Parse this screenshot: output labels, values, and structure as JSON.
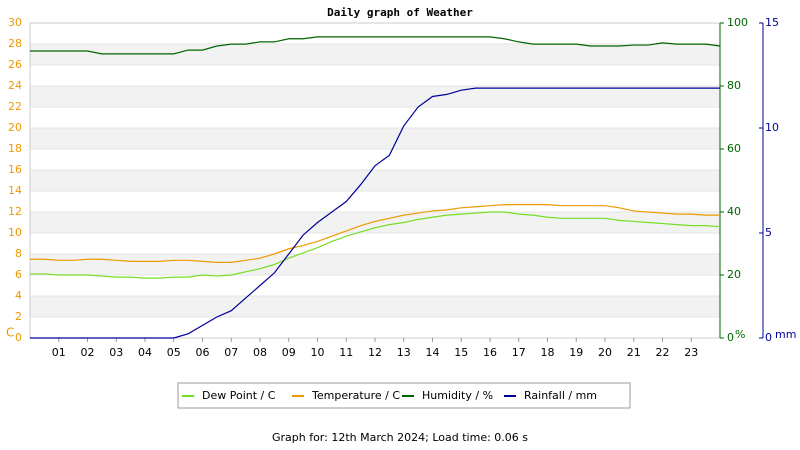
{
  "chart_data": {
    "type": "line",
    "title": "Daily graph of Weather",
    "footer": "Graph for: 12th March 2024; Load time: 0.06 s",
    "y_label": "C",
    "y2_label": "%",
    "y3_label": "mm",
    "x": [
      0,
      0.5,
      1,
      1.5,
      2,
      2.5,
      3,
      3.5,
      4,
      4.5,
      5,
      5.5,
      6,
      6.5,
      7,
      7.5,
      8,
      8.5,
      9,
      9.5,
      10,
      10.5,
      11,
      11.5,
      12,
      12.5,
      13,
      13.5,
      14,
      14.5,
      15,
      15.5,
      16,
      16.5,
      17,
      17.5,
      18,
      18.5,
      19,
      19.5,
      20,
      20.5,
      21,
      21.5,
      22,
      22.5,
      23,
      23.5,
      24
    ],
    "xlim": [
      0,
      24
    ],
    "xticks": [
      {
        "value": 1,
        "label": "01"
      },
      {
        "value": 2,
        "label": "02"
      },
      {
        "value": 3,
        "label": "03"
      },
      {
        "value": 4,
        "label": "04"
      },
      {
        "value": 5,
        "label": "05"
      },
      {
        "value": 6,
        "label": "06"
      },
      {
        "value": 7,
        "label": "07"
      },
      {
        "value": 8,
        "label": "08"
      },
      {
        "value": 9,
        "label": "09"
      },
      {
        "value": 10,
        "label": "10"
      },
      {
        "value": 11,
        "label": "11"
      },
      {
        "value": 12,
        "label": "12"
      },
      {
        "value": 13,
        "label": "13"
      },
      {
        "value": 14,
        "label": "14"
      },
      {
        "value": 15,
        "label": "15"
      },
      {
        "value": 16,
        "label": "16"
      },
      {
        "value": 17,
        "label": "17"
      },
      {
        "value": 18,
        "label": "18"
      },
      {
        "value": 19,
        "label": "19"
      },
      {
        "value": 20,
        "label": "20"
      },
      {
        "value": 21,
        "label": "21"
      },
      {
        "value": 22,
        "label": "22"
      },
      {
        "value": 23,
        "label": "23"
      }
    ],
    "ylim": [
      0,
      30
    ],
    "yticks": [
      0,
      2,
      4,
      6,
      8,
      10,
      12,
      14,
      16,
      18,
      20,
      22,
      24,
      26,
      28,
      30
    ],
    "y2lim": [
      0,
      100
    ],
    "y2ticks": [
      0,
      20,
      40,
      60,
      80,
      100
    ],
    "y3lim": [
      0,
      15
    ],
    "y3ticks": [
      0,
      5,
      10,
      15
    ],
    "grid": true,
    "series": [
      {
        "name": "Dew Point / C",
        "color": "#77dd22",
        "values": [
          6.1,
          6.1,
          6.0,
          6.0,
          6.0,
          5.9,
          5.8,
          5.8,
          5.7,
          5.7,
          5.8,
          5.8,
          6.0,
          5.9,
          6.0,
          6.3,
          6.6,
          7.0,
          7.6,
          8.1,
          8.6,
          9.2,
          9.7,
          10.1,
          10.5,
          10.8,
          11.0,
          11.3,
          11.5,
          11.7,
          11.8,
          11.9,
          12.0,
          12.0,
          11.8,
          11.7,
          11.5,
          11.4,
          11.4,
          11.4,
          11.4,
          11.2,
          11.1,
          11.0,
          10.9,
          10.8,
          10.7,
          10.7,
          10.6
        ]
      },
      {
        "name": "Temperature / C",
        "color": "#ee9900",
        "values": [
          7.5,
          7.5,
          7.4,
          7.4,
          7.5,
          7.5,
          7.4,
          7.3,
          7.3,
          7.3,
          7.4,
          7.4,
          7.3,
          7.2,
          7.2,
          7.4,
          7.6,
          8.0,
          8.5,
          8.8,
          9.2,
          9.7,
          10.2,
          10.7,
          11.1,
          11.4,
          11.7,
          11.9,
          12.1,
          12.2,
          12.4,
          12.5,
          12.6,
          12.7,
          12.7,
          12.7,
          12.7,
          12.6,
          12.6,
          12.6,
          12.6,
          12.4,
          12.1,
          12.0,
          11.9,
          11.8,
          11.8,
          11.7,
          11.7
        ]
      },
      {
        "name": "Humidity / %",
        "color": "#006600",
        "axis": "y2",
        "values": [
          91.1,
          91.1,
          91.1,
          91.1,
          91.1,
          90.2,
          90.2,
          90.2,
          90.2,
          90.2,
          90.2,
          91.4,
          91.4,
          92.7,
          93.3,
          93.3,
          94,
          94,
          95,
          95,
          95.6,
          95.6,
          95.6,
          95.6,
          95.6,
          95.6,
          95.6,
          95.6,
          95.6,
          95.6,
          95.6,
          95.6,
          95.6,
          95.0,
          94.0,
          93.3,
          93.3,
          93.3,
          93.3,
          92.7,
          92.7,
          92.7,
          93.0,
          93.0,
          93.7,
          93.3,
          93.3,
          93.3,
          92.7
        ]
      },
      {
        "name": "Rainfall / mm",
        "color": "#000099",
        "axis": "y3",
        "values": [
          0,
          0,
          0,
          0,
          0,
          0,
          0,
          0,
          0,
          0,
          0,
          0.2,
          0.6,
          1.0,
          1.3,
          1.9,
          2.5,
          3.1,
          4.0,
          4.9,
          5.5,
          6.0,
          6.5,
          7.3,
          8.2,
          8.7,
          10.1,
          11.0,
          11.5,
          11.6,
          11.8,
          11.9,
          11.9,
          11.9,
          11.9,
          11.9,
          11.9,
          11.9,
          11.9,
          11.9,
          11.9,
          11.9,
          11.9,
          11.9,
          11.9,
          11.9,
          11.9,
          11.9,
          11.9
        ]
      }
    ]
  }
}
